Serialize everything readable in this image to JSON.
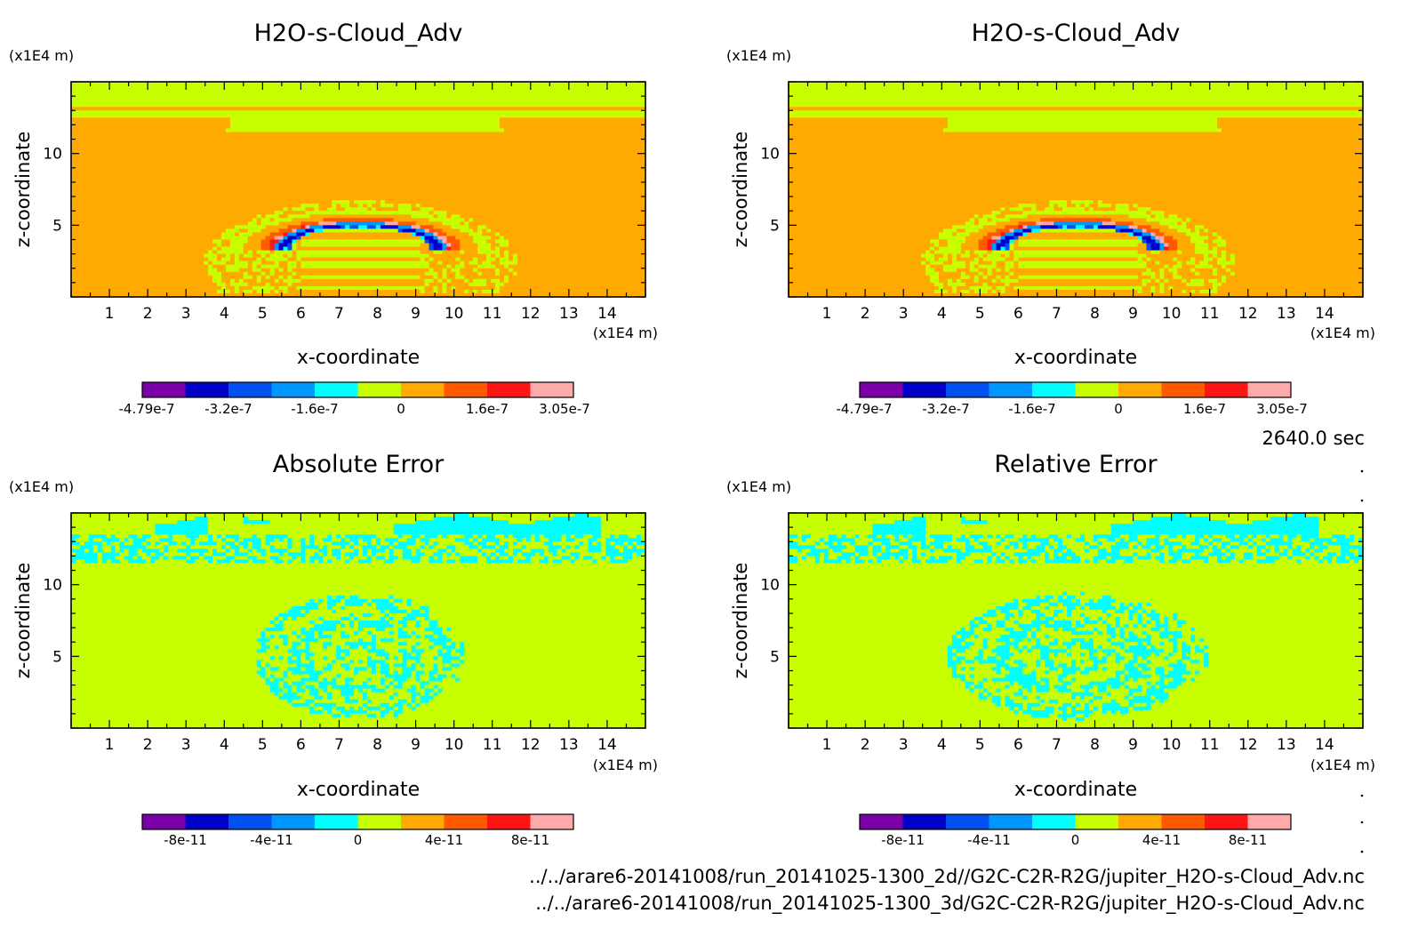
{
  "time_label": "2640.0 sec",
  "files": [
    "../../arare6-20141008/run_20141025-1300_2d//G2C-C2R-R2G/jupiter_H2O-s-Cloud_Adv.nc",
    "../../arare6-20141008/run_20141025-1300_3d/G2C-C2R-R2G/jupiter_H2O-s-Cloud_Adv.nc"
  ],
  "palette": [
    "#7b00a8",
    "#0000c8",
    "#0050f0",
    "#0096ff",
    "#00ffff",
    "#c8ff00",
    "#ffaa00",
    "#ff5a00",
    "#ff1414",
    "#ffaaaa"
  ],
  "chart_data": [
    {
      "type": "heatmap",
      "title": "H2O-s-Cloud_Adv",
      "xlabel": "x-coordinate",
      "ylabel": "z-coordinate",
      "x_unit": "(x1E4 m)",
      "y_unit": "(x1E4 m)",
      "xlim": [
        0,
        15
      ],
      "ylim": [
        0,
        15
      ],
      "x_ticks": [
        1,
        2,
        3,
        4,
        5,
        6,
        7,
        8,
        9,
        10,
        11,
        12,
        13,
        14
      ],
      "y_ticks": [
        5,
        10
      ],
      "colorbar_labels": [
        "-4.79e-7",
        "-3.2e-7",
        "-1.6e-7",
        "0",
        "1.6e-7",
        "3.05e-7"
      ],
      "field": "cloud"
    },
    {
      "type": "heatmap",
      "title": "H2O-s-Cloud_Adv",
      "xlabel": "x-coordinate",
      "ylabel": "z-coordinate",
      "x_unit": "(x1E4 m)",
      "y_unit": "(x1E4 m)",
      "xlim": [
        0,
        15
      ],
      "ylim": [
        0,
        15
      ],
      "x_ticks": [
        1,
        2,
        3,
        4,
        5,
        6,
        7,
        8,
        9,
        10,
        11,
        12,
        13,
        14
      ],
      "y_ticks": [
        5,
        10
      ],
      "colorbar_labels": [
        "-4.79e-7",
        "-3.2e-7",
        "-1.6e-7",
        "0",
        "1.6e-7",
        "3.05e-7"
      ],
      "field": "cloud"
    },
    {
      "type": "heatmap",
      "title": "Absolute Error",
      "xlabel": "x-coordinate",
      "ylabel": "z-coordinate",
      "x_unit": "(x1E4 m)",
      "y_unit": "(x1E4 m)",
      "xlim": [
        0,
        15
      ],
      "ylim": [
        0,
        15
      ],
      "x_ticks": [
        1,
        2,
        3,
        4,
        5,
        6,
        7,
        8,
        9,
        10,
        11,
        12,
        13,
        14
      ],
      "y_ticks": [
        5,
        10
      ],
      "colorbar_labels": [
        "-8e-11",
        "-4e-11",
        "0",
        "4e-11",
        "8e-11"
      ],
      "field": "abs_error"
    },
    {
      "type": "heatmap",
      "title": "Relative Error",
      "xlabel": "x-coordinate",
      "ylabel": "z-coordinate",
      "x_unit": "(x1E4 m)",
      "y_unit": "(x1E4 m)",
      "xlim": [
        0,
        15
      ],
      "ylim": [
        0,
        15
      ],
      "x_ticks": [
        1,
        2,
        3,
        4,
        5,
        6,
        7,
        8,
        9,
        10,
        11,
        12,
        13,
        14
      ],
      "y_ticks": [
        5,
        10
      ],
      "colorbar_labels": [
        "-8e-11",
        "-4e-11",
        "0",
        "4e-11",
        "8e-11"
      ],
      "field": "rel_error"
    }
  ]
}
